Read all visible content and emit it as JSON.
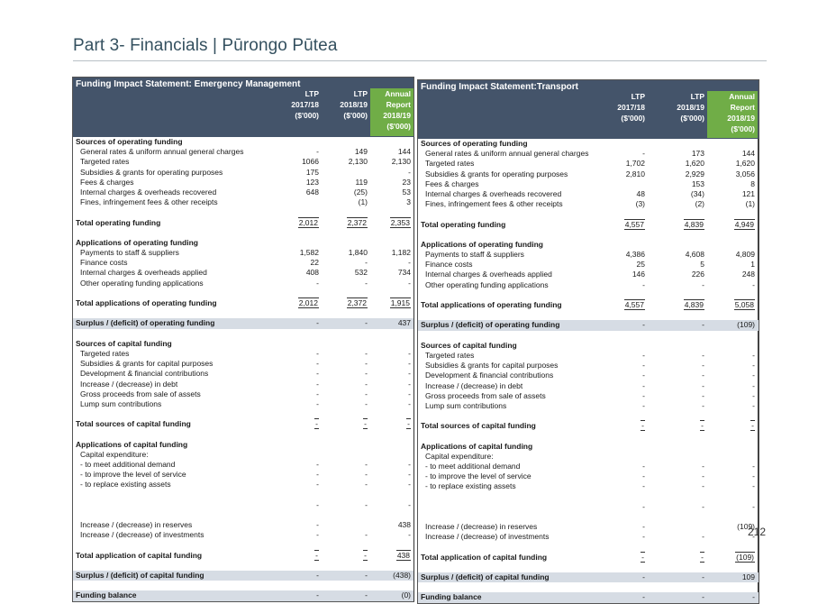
{
  "header": {
    "title": "Part 3- Financials | Pūrongo Pūtea"
  },
  "page_number": "212",
  "tables": [
    {
      "title": "Funding Impact Statement: Emergency Management",
      "columns": [
        {
          "lines": [
            "LTP",
            "",
            "2017/18",
            "($'000)"
          ]
        },
        {
          "lines": [
            "LTP",
            "",
            "2018/19",
            "($'000)"
          ]
        },
        {
          "lines": [
            "Annual",
            "Report",
            "2018/19",
            "($'000)"
          ]
        }
      ],
      "rows": [
        {
          "type": "section",
          "label": "Sources of operating funding",
          "values": [
            "",
            "",
            ""
          ]
        },
        {
          "type": "item",
          "label": "General rates & uniform annual general charges",
          "values": [
            "-",
            "149",
            "144"
          ]
        },
        {
          "type": "item",
          "label": "Targeted rates",
          "values": [
            "1066",
            "2,130",
            "2,130"
          ]
        },
        {
          "type": "item",
          "label": "Subsidies & grants for operating purposes",
          "values": [
            "175",
            "",
            "-"
          ]
        },
        {
          "type": "item",
          "label": "Fees & charges",
          "values": [
            "123",
            "119",
            "23"
          ]
        },
        {
          "type": "item",
          "label": "Internal charges & overheads recovered",
          "values": [
            "648",
            "(25)",
            "53"
          ]
        },
        {
          "type": "item",
          "label": "Fines, infringement fees & other receipts",
          "values": [
            "",
            "(1)",
            "3"
          ]
        },
        {
          "type": "blank",
          "label": "",
          "values": [
            "",
            "",
            ""
          ]
        },
        {
          "type": "total",
          "label": "Total operating funding",
          "values": [
            "2,012",
            "2,372",
            "2,353"
          ]
        },
        {
          "type": "blank",
          "label": "",
          "values": [
            "",
            "",
            ""
          ]
        },
        {
          "type": "section",
          "label": "Applications of operating funding",
          "values": [
            "",
            "",
            ""
          ]
        },
        {
          "type": "item",
          "label": "Payments to staff & suppliers",
          "values": [
            "1,582",
            "1,840",
            "1,182"
          ]
        },
        {
          "type": "item",
          "label": "Finance costs",
          "values": [
            "22",
            "-",
            "-"
          ]
        },
        {
          "type": "item",
          "label": "Internal charges & overheads applied",
          "values": [
            "408",
            "532",
            "734"
          ]
        },
        {
          "type": "item",
          "label": "Other operating funding applications",
          "values": [
            "-",
            "-",
            "-"
          ]
        },
        {
          "type": "blank",
          "label": "",
          "values": [
            "",
            "",
            ""
          ]
        },
        {
          "type": "total",
          "label": "Total applications of operating funding",
          "values": [
            "2,012",
            "2,372",
            "1,915"
          ]
        },
        {
          "type": "blank",
          "label": "",
          "values": [
            "",
            "",
            ""
          ]
        },
        {
          "type": "surplus",
          "label": "Surplus / (deficit) of operating funding",
          "values": [
            "-",
            "-",
            "437"
          ]
        },
        {
          "type": "blank",
          "label": "",
          "values": [
            "",
            "",
            ""
          ]
        },
        {
          "type": "section",
          "label": "Sources of capital funding",
          "values": [
            "",
            "",
            ""
          ]
        },
        {
          "type": "item",
          "label": "Targeted rates",
          "values": [
            "-",
            "-",
            "-"
          ]
        },
        {
          "type": "item",
          "label": "Subsidies & grants for capital purposes",
          "values": [
            "-",
            "-",
            "-"
          ]
        },
        {
          "type": "item",
          "label": "Development & financial contributions",
          "values": [
            "-",
            "-",
            "-"
          ]
        },
        {
          "type": "item",
          "label": "Increase / (decrease) in debt",
          "values": [
            "-",
            "-",
            "-"
          ]
        },
        {
          "type": "item",
          "label": "Gross proceeds from sale of assets",
          "values": [
            "-",
            "-",
            "-"
          ]
        },
        {
          "type": "item",
          "label": "Lump sum contributions",
          "values": [
            "-",
            "-",
            "-"
          ]
        },
        {
          "type": "blank",
          "label": "",
          "values": [
            "",
            "",
            ""
          ]
        },
        {
          "type": "total",
          "label": "Total sources of capital funding",
          "values": [
            "-",
            "-",
            "-"
          ]
        },
        {
          "type": "blank",
          "label": "",
          "values": [
            "",
            "",
            ""
          ]
        },
        {
          "type": "section",
          "label": "Applications of capital funding",
          "values": [
            "",
            "",
            ""
          ]
        },
        {
          "type": "item",
          "label": "Capital expenditure:",
          "values": [
            "",
            "",
            ""
          ]
        },
        {
          "type": "item",
          "label": "- to meet additional demand",
          "values": [
            "-",
            "-",
            "-"
          ]
        },
        {
          "type": "item",
          "label": "- to improve the level of service",
          "values": [
            "-",
            "-",
            "-"
          ]
        },
        {
          "type": "item",
          "label": "- to replace existing assets",
          "values": [
            "-",
            "-",
            "-"
          ]
        },
        {
          "type": "blank",
          "label": "",
          "values": [
            "",
            "",
            ""
          ]
        },
        {
          "type": "item",
          "label": "",
          "values": [
            "-",
            "-",
            "-"
          ]
        },
        {
          "type": "blank",
          "label": "",
          "values": [
            "",
            "",
            ""
          ]
        },
        {
          "type": "item",
          "label": "Increase / (decrease) in reserves",
          "values": [
            "-",
            "",
            "438"
          ]
        },
        {
          "type": "item",
          "label": "Increase / (decrease) of investments",
          "values": [
            "-",
            "-",
            "-"
          ]
        },
        {
          "type": "blank",
          "label": "",
          "values": [
            "",
            "",
            ""
          ]
        },
        {
          "type": "total",
          "label": "Total application of capital funding",
          "values": [
            "-",
            "-",
            "438"
          ]
        },
        {
          "type": "blank",
          "label": "",
          "values": [
            "",
            "",
            ""
          ]
        },
        {
          "type": "surplus",
          "label": "Surplus / (deficit) of capital funding",
          "values": [
            "-",
            "-",
            "(438)"
          ]
        },
        {
          "type": "blank",
          "label": "",
          "values": [
            "",
            "",
            ""
          ]
        },
        {
          "type": "surplus",
          "label": "Funding balance",
          "values": [
            "-",
            "-",
            "(0)"
          ]
        }
      ]
    },
    {
      "title": "Funding Impact Statement:Transport",
      "columns": [
        {
          "lines": [
            "LTP",
            "",
            "2017/18",
            "($'000)"
          ]
        },
        {
          "lines": [
            "LTP",
            "",
            "2018/19",
            "($'000)"
          ]
        },
        {
          "lines": [
            "Annual",
            "Report",
            "2018/19",
            "($'000)"
          ]
        }
      ],
      "rows": [
        {
          "type": "section",
          "label": "Sources of operating funding",
          "values": [
            "",
            "",
            ""
          ]
        },
        {
          "type": "item",
          "label": "General rates & uniform annual general charges",
          "values": [
            "-",
            "173",
            "144"
          ]
        },
        {
          "type": "item",
          "label": "Targeted rates",
          "values": [
            "1,702",
            "1,620",
            "1,620"
          ]
        },
        {
          "type": "item",
          "label": "Subsidies & grants for operating purposes",
          "values": [
            "2,810",
            "2,929",
            "3,056"
          ]
        },
        {
          "type": "item",
          "label": "Fees & charges",
          "values": [
            "",
            "153",
            "8"
          ]
        },
        {
          "type": "item",
          "label": "Internal charges & overheads recovered",
          "values": [
            "48",
            "(34)",
            "121"
          ]
        },
        {
          "type": "item",
          "label": "Fines, infringement fees & other receipts",
          "values": [
            "(3)",
            "(2)",
            "(1)"
          ]
        },
        {
          "type": "blank",
          "label": "",
          "values": [
            "",
            "",
            ""
          ]
        },
        {
          "type": "total",
          "label": "Total operating funding",
          "values": [
            "4,557",
            "4,839",
            "4,949"
          ]
        },
        {
          "type": "blank",
          "label": "",
          "values": [
            "",
            "",
            ""
          ]
        },
        {
          "type": "section",
          "label": "Applications of operating funding",
          "values": [
            "",
            "",
            ""
          ]
        },
        {
          "type": "item",
          "label": "Payments to staff & suppliers",
          "values": [
            "4,386",
            "4,608",
            "4,809"
          ]
        },
        {
          "type": "item",
          "label": "Finance costs",
          "values": [
            "25",
            "5",
            "1"
          ]
        },
        {
          "type": "item",
          "label": "Internal charges & overheads applied",
          "values": [
            "146",
            "226",
            "248"
          ]
        },
        {
          "type": "item",
          "label": "Other operating funding applications",
          "values": [
            "-",
            "-",
            "-"
          ]
        },
        {
          "type": "blank",
          "label": "",
          "values": [
            "",
            "",
            ""
          ]
        },
        {
          "type": "total",
          "label": "Total applications of operating funding",
          "values": [
            "4,557",
            "4,839",
            "5,058"
          ]
        },
        {
          "type": "blank",
          "label": "",
          "values": [
            "",
            "",
            ""
          ]
        },
        {
          "type": "surplus",
          "label": "Surplus / (deficit) of operating funding",
          "values": [
            "-",
            "-",
            "(109)"
          ]
        },
        {
          "type": "blank",
          "label": "",
          "values": [
            "",
            "",
            ""
          ]
        },
        {
          "type": "section",
          "label": "Sources of capital funding",
          "values": [
            "",
            "",
            ""
          ]
        },
        {
          "type": "item",
          "label": "Targeted rates",
          "values": [
            "-",
            "-",
            "-"
          ]
        },
        {
          "type": "item",
          "label": "Subsidies & grants for capital purposes",
          "values": [
            "-",
            "-",
            "-"
          ]
        },
        {
          "type": "item",
          "label": "Development & financial contributions",
          "values": [
            "-",
            "-",
            "-"
          ]
        },
        {
          "type": "item",
          "label": "Increase / (decrease) in debt",
          "values": [
            "-",
            "-",
            "-"
          ]
        },
        {
          "type": "item",
          "label": "Gross proceeds from sale of assets",
          "values": [
            "-",
            "-",
            "-"
          ]
        },
        {
          "type": "item",
          "label": "Lump sum contributions",
          "values": [
            "-",
            "-",
            "-"
          ]
        },
        {
          "type": "blank",
          "label": "",
          "values": [
            "",
            "",
            ""
          ]
        },
        {
          "type": "total",
          "label": "Total sources of capital funding",
          "values": [
            "-",
            "-",
            "-"
          ]
        },
        {
          "type": "blank",
          "label": "",
          "values": [
            "",
            "",
            ""
          ]
        },
        {
          "type": "section",
          "label": "Applications of capital funding",
          "values": [
            "",
            "",
            ""
          ]
        },
        {
          "type": "item",
          "label": "Capital expenditure:",
          "values": [
            "",
            "",
            ""
          ]
        },
        {
          "type": "item",
          "label": "- to meet additional demand",
          "values": [
            "-",
            "-",
            "-"
          ]
        },
        {
          "type": "item",
          "label": "- to improve the level of service",
          "values": [
            "-",
            "-",
            "-"
          ]
        },
        {
          "type": "item",
          "label": "- to replace existing assets",
          "values": [
            "-",
            "-",
            "-"
          ]
        },
        {
          "type": "blank",
          "label": "",
          "values": [
            "",
            "",
            ""
          ]
        },
        {
          "type": "item",
          "label": "",
          "values": [
            "-",
            "-",
            "-"
          ]
        },
        {
          "type": "blank",
          "label": "",
          "values": [
            "",
            "",
            ""
          ]
        },
        {
          "type": "item",
          "label": "Increase / (decrease) in reserves",
          "values": [
            "-",
            "",
            "(109)"
          ]
        },
        {
          "type": "item",
          "label": "Increase / (decrease) of investments",
          "values": [
            "-",
            "-",
            "-"
          ]
        },
        {
          "type": "blank",
          "label": "",
          "values": [
            "",
            "",
            ""
          ]
        },
        {
          "type": "total",
          "label": "Total application of capital funding",
          "values": [
            "-",
            "-",
            "(109)"
          ]
        },
        {
          "type": "blank",
          "label": "",
          "values": [
            "",
            "",
            ""
          ]
        },
        {
          "type": "surplus",
          "label": "Surplus / (deficit) of capital funding",
          "values": [
            "-",
            "-",
            "109"
          ]
        },
        {
          "type": "blank",
          "label": "",
          "values": [
            "",
            "",
            ""
          ]
        },
        {
          "type": "surplus",
          "label": "Funding balance",
          "values": [
            "-",
            "-",
            "-"
          ]
        }
      ]
    }
  ]
}
